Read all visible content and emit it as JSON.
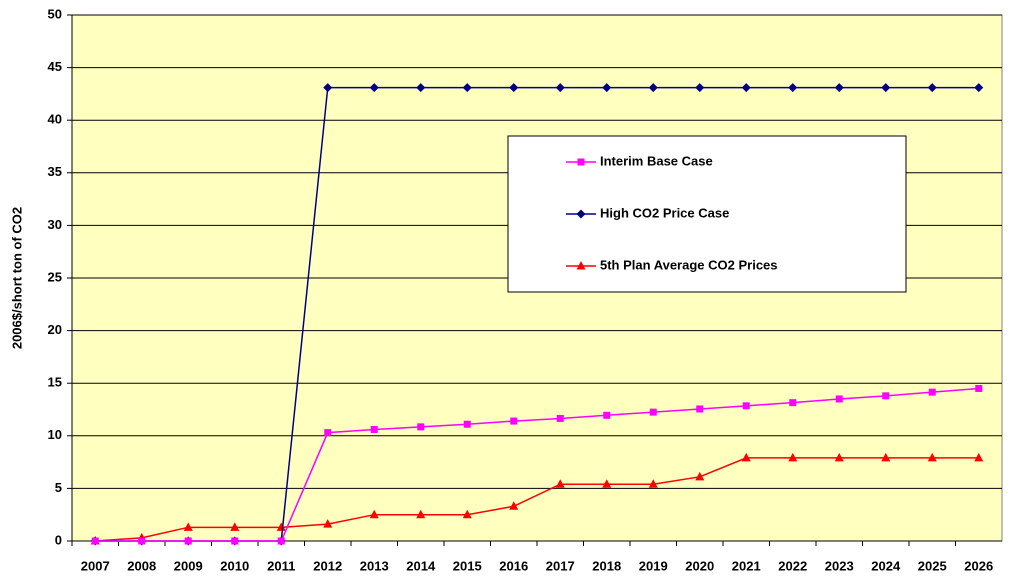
{
  "chart_data": {
    "type": "line",
    "y_label": "2006$/short ton of CO2",
    "categories": [
      "2007",
      "2008",
      "2009",
      "2010",
      "2011",
      "2012",
      "2013",
      "2014",
      "2015",
      "2016",
      "2017",
      "2018",
      "2019",
      "2020",
      "2021",
      "2022",
      "2023",
      "2024",
      "2025",
      "2026"
    ],
    "series": [
      {
        "name": "Interim Base Case",
        "color": "#ff00ff",
        "marker": "square",
        "values": [
          0,
          0,
          0,
          0,
          0,
          10.3,
          10.6,
          10.85,
          11.1,
          11.4,
          11.65,
          11.95,
          12.25,
          12.55,
          12.85,
          13.15,
          13.5,
          13.8,
          14.15,
          14.5
        ]
      },
      {
        "name": "High CO2 Price Case",
        "color": "#000080",
        "marker": "diamond",
        "values": [
          0,
          0,
          0,
          0,
          0,
          43.1,
          43.1,
          43.1,
          43.1,
          43.1,
          43.1,
          43.1,
          43.1,
          43.1,
          43.1,
          43.1,
          43.1,
          43.1,
          43.1,
          43.1
        ]
      },
      {
        "name": "5th Plan Average CO2 Prices",
        "color": "#ff0000",
        "marker": "triangle",
        "values": [
          0,
          0.3,
          1.3,
          1.3,
          1.3,
          1.6,
          2.5,
          2.5,
          2.5,
          3.3,
          5.4,
          5.4,
          5.4,
          6.1,
          7.9,
          7.9,
          7.9,
          7.9,
          7.9,
          7.9
        ]
      }
    ],
    "ylim": [
      0,
      50
    ],
    "yticks": [
      0,
      5,
      10,
      15,
      20,
      25,
      30,
      35,
      40,
      45,
      50
    ],
    "grid": true,
    "plot_background": "#ffffc0"
  }
}
